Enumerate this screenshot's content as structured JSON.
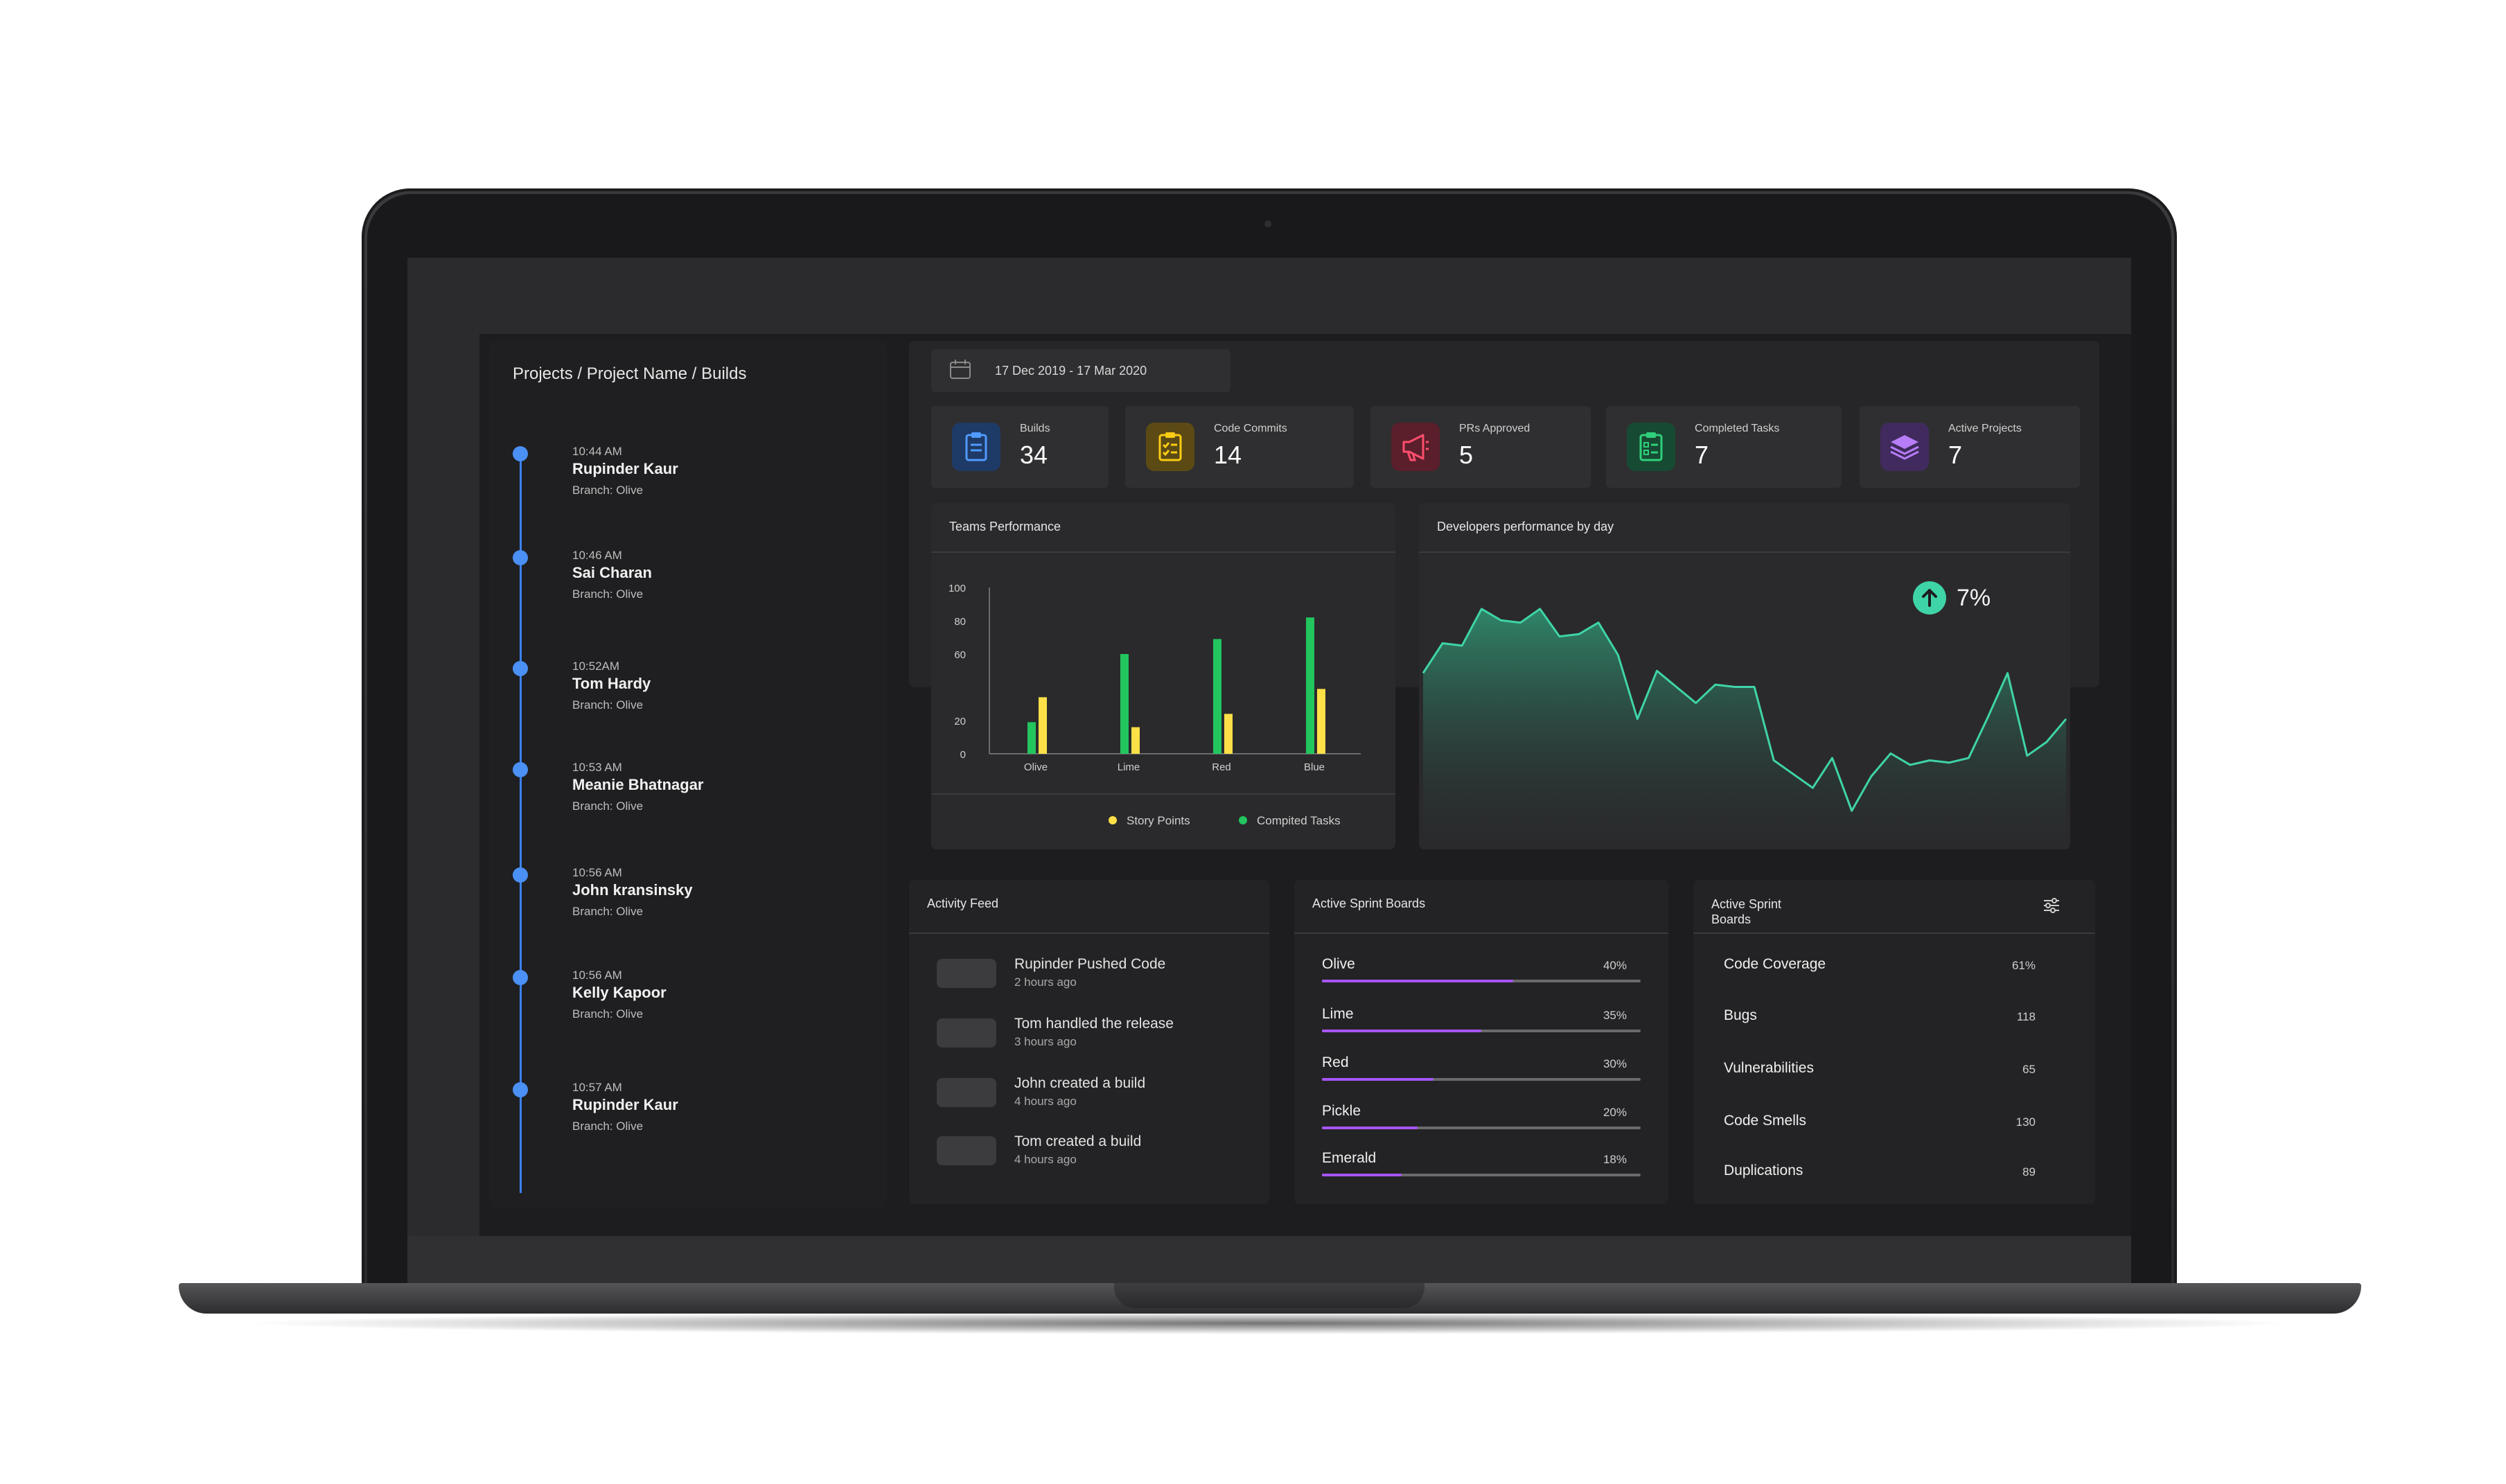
{
  "breadcrumb": "Projects / Project Name / Builds",
  "timeline": [
    {
      "time": "10:44 AM",
      "name": "Rupinder Kaur",
      "branch": "Branch: Olive"
    },
    {
      "time": "10:46 AM",
      "name": "Sai Charan",
      "branch": "Branch: Olive"
    },
    {
      "time": "10:52AM",
      "name": "Tom Hardy",
      "branch": "Branch: Olive"
    },
    {
      "time": "10:53 AM",
      "name": "Meanie Bhatnagar",
      "branch": "Branch: Olive"
    },
    {
      "time": "10:56 AM",
      "name": "John kransinsky",
      "branch": "Branch: Olive"
    },
    {
      "time": "10:56 AM",
      "name": "Kelly Kapoor",
      "branch": "Branch: Olive"
    },
    {
      "time": "10:57 AM",
      "name": "Rupinder Kaur",
      "branch": "Branch: Olive"
    }
  ],
  "date_range": "17 Dec 2019 - 17 Mar 2020",
  "stats": [
    {
      "label": "Builds",
      "value": "34",
      "icon": "clipboard-icon",
      "color": "#3b82f6"
    },
    {
      "label": "Code Commits",
      "value": "14",
      "icon": "checklist-icon",
      "color": "#facc15"
    },
    {
      "label": "PRs Approved",
      "value": "5",
      "icon": "megaphone-icon",
      "color": "#ef4444"
    },
    {
      "label": "Completed Tasks",
      "value": "7",
      "icon": "task-list-icon",
      "color": "#22c55e"
    },
    {
      "label": "Active Projects",
      "value": "7",
      "icon": "layers-icon",
      "color": "#a855f7"
    }
  ],
  "teams_performance": {
    "title": "Teams Performance"
  },
  "developers_performance": {
    "title": "Developers performance by day",
    "change": "7%",
    "change_icon": "arrow-up-icon"
  },
  "chart_data": [
    {
      "type": "bar",
      "title": "Teams Performance",
      "categories": [
        "Olive",
        "Lime",
        "Red",
        "Blue"
      ],
      "series": [
        {
          "name": "Compited Tasks",
          "color": "#22c55e",
          "values": [
            19,
            60,
            69,
            82
          ]
        },
        {
          "name": "Story Points",
          "color": "#fde047",
          "values": [
            34,
            16,
            24,
            39
          ]
        }
      ],
      "yticks": [
        0,
        20,
        60,
        80,
        100
      ],
      "ylim": [
        0,
        100
      ],
      "legend_position": "bottom"
    },
    {
      "type": "area",
      "title": "Developers performance by day",
      "color": "#3fd4a8",
      "values": [
        40,
        53,
        52,
        68,
        63,
        62,
        68,
        56,
        57,
        62,
        48,
        20,
        41,
        34,
        27,
        35,
        34,
        34,
        2,
        -4,
        -10,
        3,
        -20,
        -5,
        5,
        0,
        2,
        1,
        3,
        21,
        40,
        4,
        10,
        20
      ],
      "ylim": [
        -35,
        90
      ]
    }
  ],
  "activity_feed": {
    "title": "Activity Feed",
    "items": [
      {
        "text": "Rupinder Pushed Code",
        "time": "2 hours ago"
      },
      {
        "text": "Tom handled the release",
        "time": "3 hours ago"
      },
      {
        "text": "John created a build",
        "time": "4 hours ago"
      },
      {
        "text": "Tom created a build",
        "time": "4 hours ago"
      }
    ]
  },
  "sprint_boards": {
    "title": "Active Sprint Boards",
    "items": [
      {
        "name": "Olive",
        "pct_label": "40%",
        "value": 0.6
      },
      {
        "name": "Lime",
        "pct_label": "35%",
        "value": 0.5
      },
      {
        "name": "Red",
        "pct_label": "30%",
        "value": 0.35
      },
      {
        "name": "Pickle",
        "pct_label": "20%",
        "value": 0.3
      },
      {
        "name": "Emerald",
        "pct_label": "18%",
        "value": 0.25
      }
    ]
  },
  "quality_boards": {
    "title": "Active Sprint Boards",
    "filter_icon": "filter-icon",
    "items": [
      {
        "name": "Code Coverage",
        "value": "61%"
      },
      {
        "name": "Bugs",
        "value": "118"
      },
      {
        "name": "Vulnerabilities",
        "value": "65"
      },
      {
        "name": "Code Smells",
        "value": "130"
      },
      {
        "name": "Duplications",
        "value": "89"
      }
    ]
  }
}
